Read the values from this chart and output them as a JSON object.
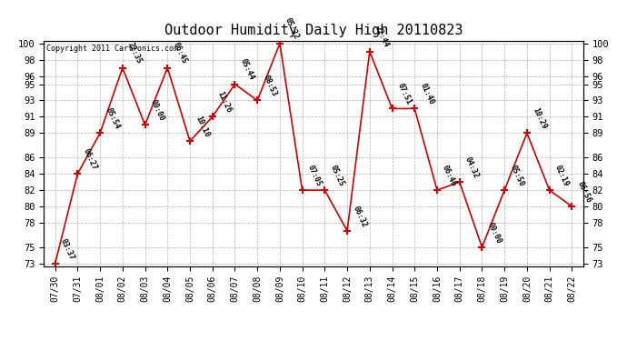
{
  "title": "Outdoor Humidity Daily High 20110823",
  "copyright": "Copyright 2011 Cartronics.com",
  "x_labels": [
    "07/30",
    "07/31",
    "08/01",
    "08/02",
    "08/03",
    "08/04",
    "08/05",
    "08/06",
    "08/07",
    "08/08",
    "08/09",
    "08/10",
    "08/11",
    "08/12",
    "08/13",
    "08/14",
    "08/15",
    "08/16",
    "08/17",
    "08/18",
    "08/19",
    "08/20",
    "08/21",
    "08/22"
  ],
  "y_values": [
    73,
    84,
    89,
    97,
    90,
    97,
    88,
    91,
    95,
    93,
    100,
    82,
    82,
    77,
    99,
    92,
    92,
    82,
    83,
    75,
    82,
    89,
    82,
    80
  ],
  "point_labels": [
    "03:37",
    "06:27",
    "05:54",
    "22:35",
    "00:00",
    "06:45",
    "10:10",
    "11:26",
    "05:44",
    "08:53",
    "05:32",
    "07:05",
    "05:25",
    "06:32",
    "22:44",
    "07:51",
    "01:40",
    "06:46",
    "04:32",
    "00:00",
    "05:50",
    "10:29",
    "02:19",
    "06:56"
  ],
  "line_color": "#cc0000",
  "marker_color": "#cc0000",
  "background_color": "#ffffff",
  "grid_color": "#b0b0b0",
  "title_fontsize": 11,
  "ylim_min": 73,
  "ylim_max": 100,
  "yticks": [
    73,
    75,
    78,
    80,
    82,
    84,
    86,
    89,
    91,
    93,
    95,
    96,
    98,
    100
  ]
}
